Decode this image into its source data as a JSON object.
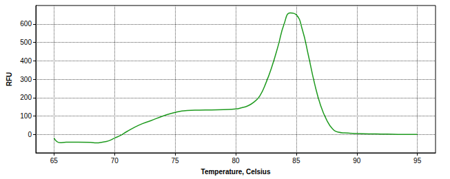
{
  "chart_data": {
    "type": "line",
    "x_label": "Temperature, Celsius",
    "y_label": "RFU",
    "x": [
      65,
      65.5,
      66,
      67,
      68,
      68.5,
      69,
      69.5,
      70,
      70.5,
      71,
      72,
      73,
      74,
      75,
      76,
      77,
      78,
      79,
      80,
      80.5,
      81,
      81.5,
      82,
      82.5,
      83,
      83.5,
      84,
      84.5,
      85,
      85.5,
      86,
      86.5,
      87,
      87.5,
      88,
      88.5,
      89,
      90,
      91,
      92,
      93,
      94,
      95
    ],
    "values": [
      -20,
      -45,
      -42,
      -42,
      -43,
      -46,
      -42,
      -35,
      -20,
      -5,
      15,
      50,
      75,
      100,
      120,
      130,
      132,
      133,
      135,
      138,
      145,
      155,
      175,
      210,
      280,
      370,
      480,
      600,
      660,
      650,
      570,
      430,
      280,
      160,
      80,
      30,
      12,
      8,
      5,
      3,
      2,
      1,
      0,
      0
    ],
    "color": "#1e9a1e",
    "xlim": [
      63.5,
      96.5
    ],
    "xticks": [
      65,
      70,
      75,
      80,
      85,
      90,
      95
    ],
    "ylim": [
      -100,
      700
    ],
    "yticks": [
      0,
      100,
      200,
      300,
      400,
      500,
      600
    ],
    "grid": true
  }
}
